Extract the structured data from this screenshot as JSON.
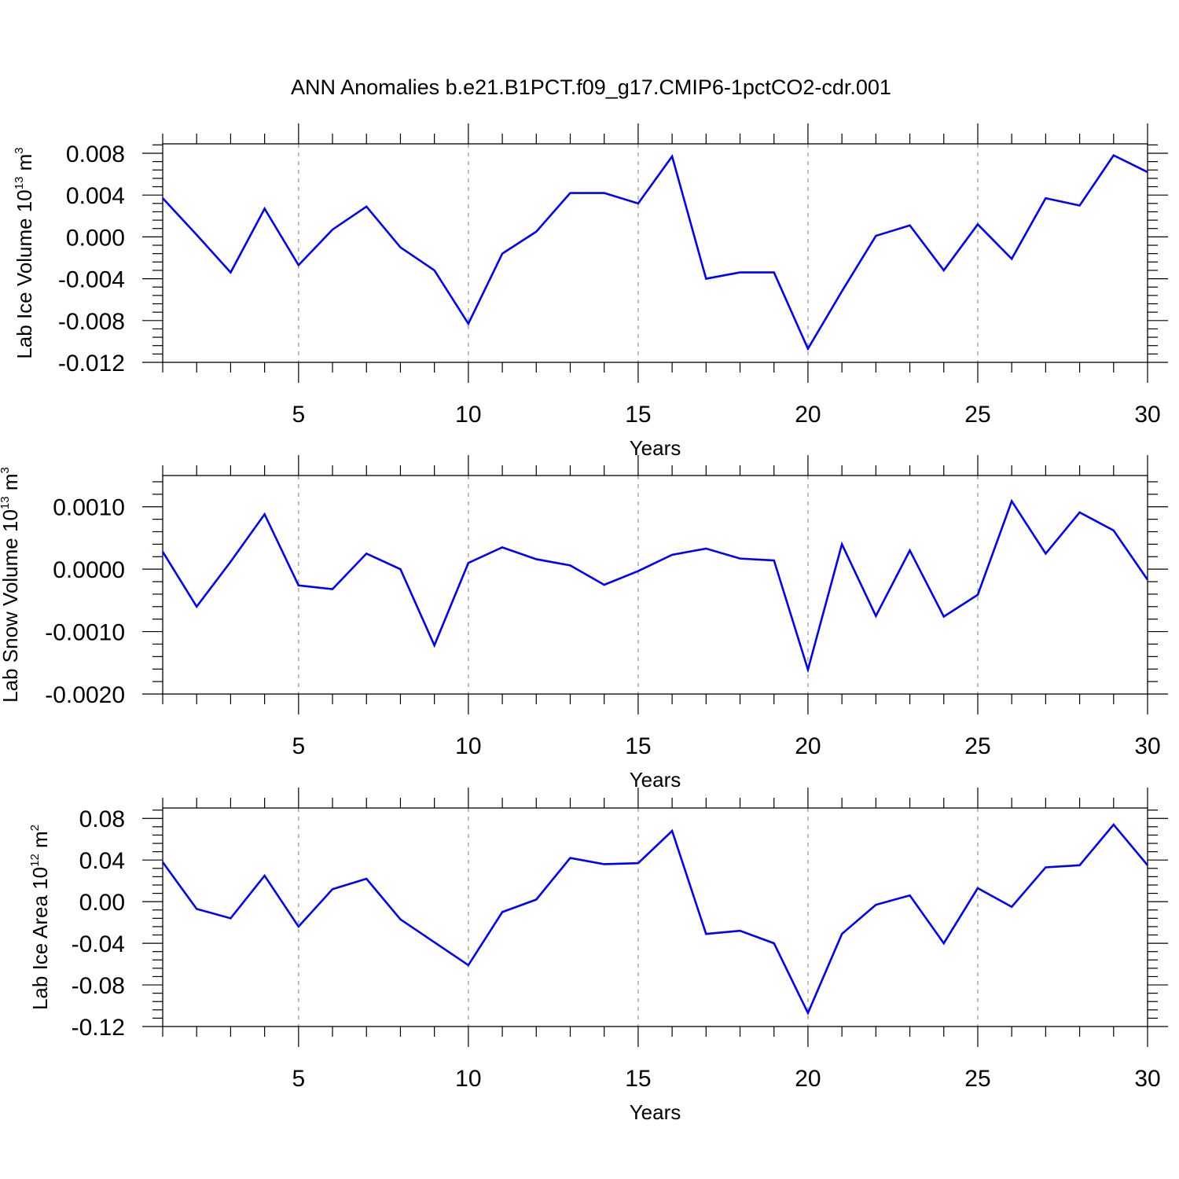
{
  "title": "ANN Anomalies b.e21.B1PCT.f09_g17.CMIP6-1pctCO2-cdr.001",
  "colors": {
    "line": "#0000ff",
    "axis": "#000000",
    "grid": "#999999",
    "background": "#ffffff"
  },
  "chart_data": [
    {
      "type": "line",
      "xlabel": "Years",
      "ylabel_text": "Lab Ice Volume 10",
      "ylabel_exp": "13",
      "ylabel_unit": " m",
      "ylabel_unit_exp": "3",
      "xlim": [
        1,
        30
      ],
      "ylim": [
        -0.012,
        0.0089
      ],
      "xticks": [
        5,
        10,
        15,
        20,
        25,
        30
      ],
      "xtick_labels": [
        "5",
        "10",
        "15",
        "20",
        "25",
        "30"
      ],
      "yticks": [
        -0.012,
        -0.008,
        -0.004,
        0.0,
        0.004,
        0.008
      ],
      "ytick_labels": [
        "-0.012",
        "-0.008",
        "-0.004",
        "0.000",
        "0.004",
        "0.008"
      ],
      "grid": "vertical dashed",
      "x": [
        1,
        2,
        3,
        4,
        5,
        6,
        7,
        8,
        9,
        10,
        11,
        12,
        13,
        14,
        15,
        16,
        17,
        18,
        19,
        20,
        21,
        22,
        23,
        24,
        25,
        26,
        27,
        28,
        29,
        30
      ],
      "series": [
        {
          "values": [
            0.0037,
            0.0002,
            -0.0034,
            0.0027,
            -0.0027,
            0.0007,
            0.0029,
            -0.001,
            -0.0032,
            -0.0083,
            -0.0016,
            0.0005,
            0.0042,
            0.0042,
            0.0032,
            0.0077,
            -0.004,
            -0.0034,
            -0.0034,
            -0.0107,
            -0.0052,
            0.0001,
            0.0011,
            -0.0032,
            0.0012,
            -0.0021,
            0.0037,
            0.003,
            0.0078,
            0.0062
          ]
        }
      ]
    },
    {
      "type": "line",
      "xlabel": "Years",
      "ylabel_text": "Lab Snow Volume 10",
      "ylabel_exp": "13",
      "ylabel_unit": " m",
      "ylabel_unit_exp": "3",
      "xlim": [
        1,
        30
      ],
      "ylim": [
        -0.002,
        0.0015
      ],
      "xticks": [
        5,
        10,
        15,
        20,
        25,
        30
      ],
      "xtick_labels": [
        "5",
        "10",
        "15",
        "20",
        "25",
        "30"
      ],
      "yticks": [
        -0.002,
        -0.001,
        0.0,
        0.001
      ],
      "ytick_labels": [
        "-0.0020",
        "-0.0010",
        "0.0000",
        "0.0010"
      ],
      "grid": "vertical dashed",
      "x": [
        1,
        2,
        3,
        4,
        5,
        6,
        7,
        8,
        9,
        10,
        11,
        12,
        13,
        14,
        15,
        16,
        17,
        18,
        19,
        20,
        21,
        22,
        23,
        24,
        25,
        26,
        27,
        28,
        29,
        30
      ],
      "series": [
        {
          "values": [
            0.00028,
            -0.0006,
            0.00012,
            0.00088,
            -0.00026,
            -0.00032,
            0.00025,
            0.0,
            -0.00122,
            0.0001,
            0.00035,
            0.00016,
            6e-05,
            -0.00025,
            -3e-05,
            0.00023,
            0.00033,
            0.00017,
            0.00014,
            -0.00161,
            0.0004,
            -0.00075,
            0.0003,
            -0.00076,
            -0.00041,
            0.00109,
            0.00025,
            0.00091,
            0.00062,
            -0.00017
          ]
        }
      ]
    },
    {
      "type": "line",
      "xlabel": "Years",
      "ylabel_text": "Lab Ice Area 10",
      "ylabel_exp": "12",
      "ylabel_unit": " m",
      "ylabel_unit_exp": "2",
      "xlim": [
        1,
        30
      ],
      "ylim": [
        -0.12,
        0.09
      ],
      "xticks": [
        5,
        10,
        15,
        20,
        25,
        30
      ],
      "xtick_labels": [
        "5",
        "10",
        "15",
        "20",
        "25",
        "30"
      ],
      "yticks": [
        -0.12,
        -0.08,
        -0.04,
        0.0,
        0.04,
        0.08
      ],
      "ytick_labels": [
        "-0.12",
        "-0.08",
        "-0.04",
        "0.00",
        "0.04",
        "0.08"
      ],
      "grid": "vertical dashed",
      "x": [
        1,
        2,
        3,
        4,
        5,
        6,
        7,
        8,
        9,
        10,
        11,
        12,
        13,
        14,
        15,
        16,
        17,
        18,
        19,
        20,
        21,
        22,
        23,
        24,
        25,
        26,
        27,
        28,
        29,
        30
      ],
      "series": [
        {
          "values": [
            0.038,
            -0.007,
            -0.016,
            0.025,
            -0.024,
            0.012,
            0.022,
            -0.017,
            -0.039,
            -0.061,
            -0.01,
            0.002,
            0.042,
            0.036,
            0.037,
            0.068,
            -0.031,
            -0.028,
            -0.04,
            -0.107,
            -0.031,
            -0.003,
            0.006,
            -0.04,
            0.013,
            -0.005,
            0.033,
            0.035,
            0.074,
            0.035
          ]
        }
      ]
    }
  ]
}
